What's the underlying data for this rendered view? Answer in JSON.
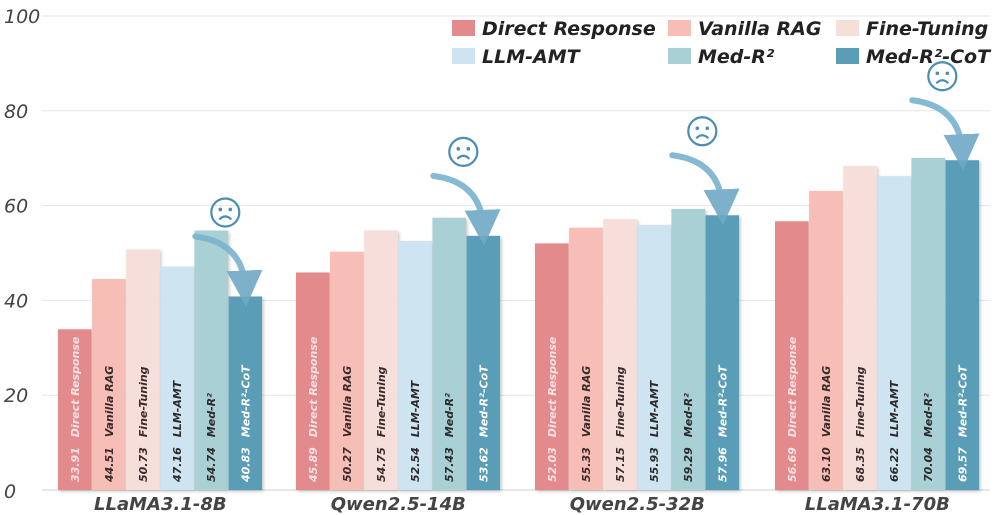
{
  "chart_data": {
    "type": "bar",
    "categories": [
      "LLaMA3.1-8B",
      "Qwen2.5-14B",
      "Qwen2.5-32B",
      "LLaMA3.1-70B"
    ],
    "series": [
      {
        "name": "Direct Response",
        "color": "#e38a8d",
        "label_color": "#fbe3e3",
        "values": [
          33.91,
          45.89,
          52.03,
          56.69
        ]
      },
      {
        "name": "Vanilla RAG",
        "color": "#f6beb6",
        "label_color": "#3a2a2a",
        "values": [
          44.51,
          50.27,
          55.33,
          63.1
        ]
      },
      {
        "name": "Fine-Tuning",
        "color": "#f6dfda",
        "label_color": "#3a2a2a",
        "values": [
          50.73,
          54.75,
          57.15,
          68.35
        ]
      },
      {
        "name": "LLM-AMT",
        "color": "#cfe4f1",
        "label_color": "#2a2a2a",
        "values": [
          47.16,
          52.54,
          55.93,
          66.22
        ]
      },
      {
        "name": "Med-R²",
        "color": "#a9d0d5",
        "label_color": "#2a2a2a",
        "values": [
          54.74,
          57.43,
          59.29,
          70.04
        ]
      },
      {
        "name": "Med-R²-CoT",
        "color": "#5a9db6",
        "label_color": "#ffffff",
        "values": [
          40.83,
          53.62,
          57.96,
          69.57
        ]
      }
    ],
    "value_labels": {
      "LLaMA3.1-8B": [
        "33.91",
        "44.51",
        "50.73",
        "47.16",
        "54.74",
        "40.83"
      ],
      "Qwen2.5-14B": [
        "45.89",
        "50.27",
        "54.75",
        "52.54",
        "57.43",
        "53.62"
      ],
      "Qwen2.5-32B": [
        "52.03",
        "55.33",
        "57.15",
        "55.93",
        "59.29",
        "57.96"
      ],
      "LLaMA3.1-70B": [
        "56.69",
        "63.10",
        "68.35",
        "66.22",
        "70.04",
        "69.57"
      ]
    },
    "annotations": [
      "sad-face marker with downward arrow above Med-R²-CoT bar in each group"
    ],
    "yticks": [
      "0",
      "20",
      "40",
      "60",
      "80",
      "100"
    ],
    "ylim": [
      0,
      100
    ],
    "grid": true,
    "legend": "top-right",
    "xlabel": "",
    "ylabel": "",
    "title": ""
  }
}
